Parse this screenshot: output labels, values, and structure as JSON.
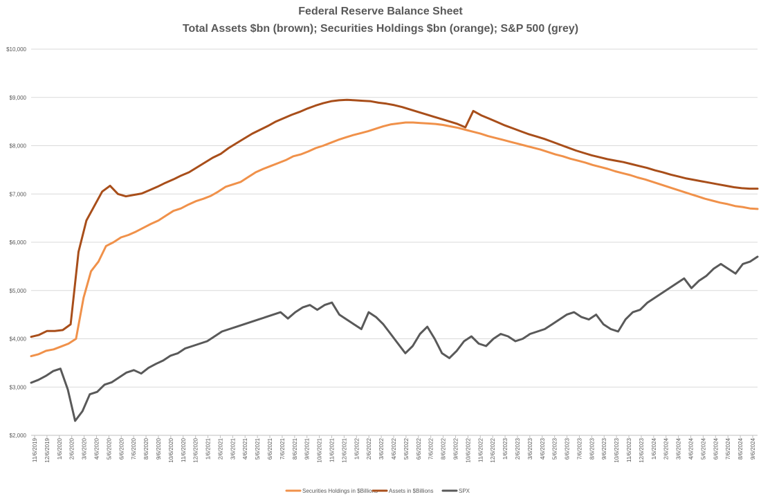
{
  "chart_data": {
    "type": "line",
    "title": "Federal Reserve Balance Sheet",
    "subtitle": "Total Assets $bn (brown); Securities Holdings $bn (orange); S&P 500 (grey)",
    "xlabel": "",
    "ylabel": "",
    "ylim": [
      2000,
      10000
    ],
    "y_ticks": [
      2000,
      3000,
      4000,
      5000,
      6000,
      7000,
      8000,
      9000,
      10000
    ],
    "y_tick_labels": [
      "$2,000",
      "$3,000",
      "$4,000",
      "$5,000",
      "$6,000",
      "$7,000",
      "$8,000",
      "$9,000",
      "$10,000"
    ],
    "x_tick_labels": [
      "11/6/2019",
      "12/6/2019",
      "1/6/2020",
      "2/6/2020",
      "3/6/2020",
      "4/6/2020",
      "5/6/2020",
      "6/6/2020",
      "7/6/2020",
      "8/6/2020",
      "9/6/2020",
      "10/6/2020",
      "11/6/2020",
      "12/6/2020",
      "1/6/2021",
      "2/6/2021",
      "3/6/2021",
      "4/6/2021",
      "5/6/2021",
      "6/6/2021",
      "7/6/2021",
      "8/6/2021",
      "9/6/2021",
      "10/6/2021",
      "11/6/2021",
      "12/6/2021",
      "1/6/2022",
      "2/6/2022",
      "3/6/2022",
      "4/6/2022",
      "5/6/2022",
      "6/6/2022",
      "7/6/2022",
      "8/6/2022",
      "9/6/2022",
      "10/6/2022",
      "11/6/2022",
      "12/6/2022",
      "1/6/2023",
      "2/6/2023",
      "3/6/2023",
      "4/6/2023",
      "5/6/2023",
      "6/6/2023",
      "7/6/2023",
      "8/6/2023",
      "9/6/2023",
      "10/6/2023",
      "11/6/2023",
      "12/6/2023",
      "1/6/2024",
      "2/6/2024",
      "3/6/2024",
      "4/6/2024",
      "5/6/2024",
      "6/6/2024",
      "7/6/2024",
      "8/6/2024",
      "9/6/2024"
    ],
    "grid": true,
    "legend_position": "bottom",
    "series": [
      {
        "name": "Securities Holdings in $Billions",
        "color": "#F0914A",
        "values": [
          3640,
          3680,
          3750,
          3780,
          3840,
          3900,
          4000,
          4850,
          5400,
          5600,
          5920,
          6000,
          6100,
          6150,
          6220,
          6300,
          6380,
          6450,
          6550,
          6650,
          6700,
          6780,
          6850,
          6900,
          6960,
          7050,
          7150,
          7200,
          7250,
          7350,
          7450,
          7520,
          7580,
          7640,
          7700,
          7780,
          7820,
          7880,
          7950,
          8000,
          8060,
          8120,
          8170,
          8220,
          8260,
          8300,
          8350,
          8400,
          8440,
          8460,
          8480,
          8480,
          8470,
          8460,
          8450,
          8430,
          8400,
          8370,
          8330,
          8290,
          8250,
          8200,
          8160,
          8120,
          8080,
          8040,
          8000,
          7960,
          7920,
          7870,
          7820,
          7780,
          7730,
          7690,
          7650,
          7600,
          7560,
          7520,
          7470,
          7430,
          7390,
          7340,
          7300,
          7250,
          7200,
          7150,
          7100,
          7050,
          7000,
          6950,
          6900,
          6860,
          6820,
          6790,
          6750,
          6730,
          6700,
          6690
        ]
      },
      {
        "name": "Assets in $Billions",
        "color": "#A84E1A",
        "values": [
          4040,
          4080,
          4160,
          4160,
          4180,
          4300,
          5800,
          6450,
          6750,
          7050,
          7170,
          7000,
          6950,
          6980,
          7010,
          7080,
          7150,
          7230,
          7300,
          7380,
          7450,
          7550,
          7650,
          7750,
          7830,
          7950,
          8050,
          8150,
          8250,
          8330,
          8410,
          8500,
          8570,
          8640,
          8700,
          8770,
          8830,
          8880,
          8920,
          8940,
          8950,
          8940,
          8930,
          8920,
          8890,
          8870,
          8840,
          8800,
          8750,
          8700,
          8650,
          8600,
          8550,
          8500,
          8450,
          8380,
          8720,
          8630,
          8560,
          8490,
          8420,
          8360,
          8300,
          8240,
          8190,
          8140,
          8080,
          8020,
          7960,
          7900,
          7850,
          7800,
          7760,
          7720,
          7690,
          7660,
          7620,
          7580,
          7540,
          7490,
          7450,
          7400,
          7360,
          7320,
          7290,
          7260,
          7230,
          7200,
          7170,
          7140,
          7120,
          7110,
          7110
        ]
      },
      {
        "name": "SPX",
        "color": "#595959",
        "values": [
          3090,
          3150,
          3230,
          3330,
          3380,
          2950,
          2300,
          2500,
          2850,
          2900,
          3050,
          3100,
          3200,
          3300,
          3350,
          3280,
          3400,
          3480,
          3550,
          3650,
          3700,
          3800,
          3850,
          3900,
          3950,
          4050,
          4150,
          4200,
          4250,
          4300,
          4350,
          4400,
          4450,
          4500,
          4550,
          4420,
          4550,
          4650,
          4700,
          4600,
          4700,
          4750,
          4500,
          4400,
          4300,
          4200,
          4550,
          4450,
          4300,
          4100,
          3900,
          3700,
          3850,
          4100,
          4250,
          4000,
          3700,
          3600,
          3750,
          3950,
          4050,
          3900,
          3850,
          4000,
          4100,
          4050,
          3950,
          4000,
          4100,
          4150,
          4200,
          4300,
          4400,
          4500,
          4550,
          4450,
          4400,
          4500,
          4300,
          4200,
          4150,
          4400,
          4550,
          4600,
          4750,
          4850,
          4950,
          5050,
          5150,
          5250,
          5050,
          5200,
          5300,
          5450,
          5550,
          5450,
          5350,
          5550,
          5600,
          5700
        ]
      }
    ]
  }
}
